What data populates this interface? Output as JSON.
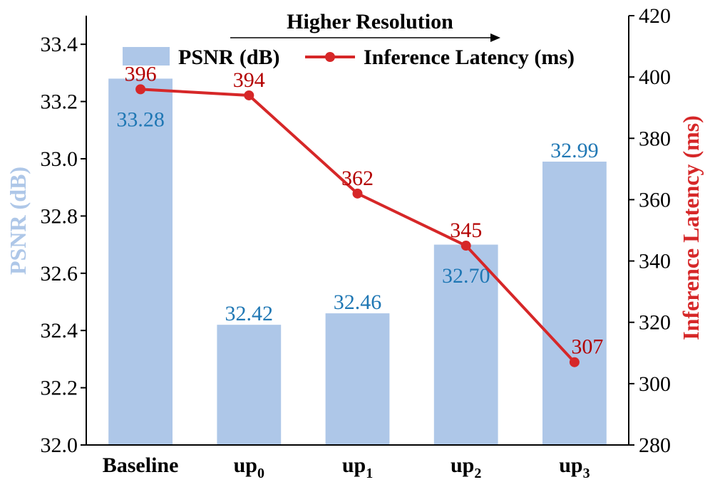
{
  "chart_data": {
    "type": "bar+line",
    "categories": [
      "Baseline",
      "up0",
      "up1",
      "up2",
      "up3"
    ],
    "category_labels": [
      {
        "base": "Baseline",
        "sub": ""
      },
      {
        "base": "up",
        "sub": "0"
      },
      {
        "base": "up",
        "sub": "1"
      },
      {
        "base": "up",
        "sub": "2"
      },
      {
        "base": "up",
        "sub": "3"
      }
    ],
    "series": [
      {
        "name": "PSNR (dB)",
        "type": "bar",
        "axis": "left",
        "values": [
          33.28,
          32.42,
          32.46,
          32.7,
          32.99
        ],
        "labels": [
          "33.28",
          "32.42",
          "32.46",
          "32.70",
          "32.99"
        ]
      },
      {
        "name": "Inference Latency (ms)",
        "type": "line",
        "axis": "right",
        "values": [
          396,
          394,
          362,
          345,
          307
        ],
        "labels": [
          "396",
          "394",
          "362",
          "345",
          "307"
        ]
      }
    ],
    "ylabel_left": "PSNR (dB)",
    "ylabel_right": "Inference Latency (ms)",
    "ylim_left": [
      32.0,
      33.5
    ],
    "ylim_right": [
      280,
      420
    ],
    "yticks_left": [
      "32.0",
      "32.2",
      "32.4",
      "32.6",
      "32.8",
      "33.0",
      "33.2",
      "33.4"
    ],
    "yticks_right": [
      "280",
      "300",
      "320",
      "340",
      "360",
      "380",
      "400",
      "420"
    ],
    "annotation": "Higher Resolution",
    "legend_position": "top",
    "grid": false
  },
  "colors": {
    "bar": "#aec7e8",
    "bar_label": "#1f77b4",
    "line": "#d62728",
    "line_label": "#b30000",
    "left_axis_title": "#aec7e8",
    "right_axis_title": "#d62728"
  }
}
